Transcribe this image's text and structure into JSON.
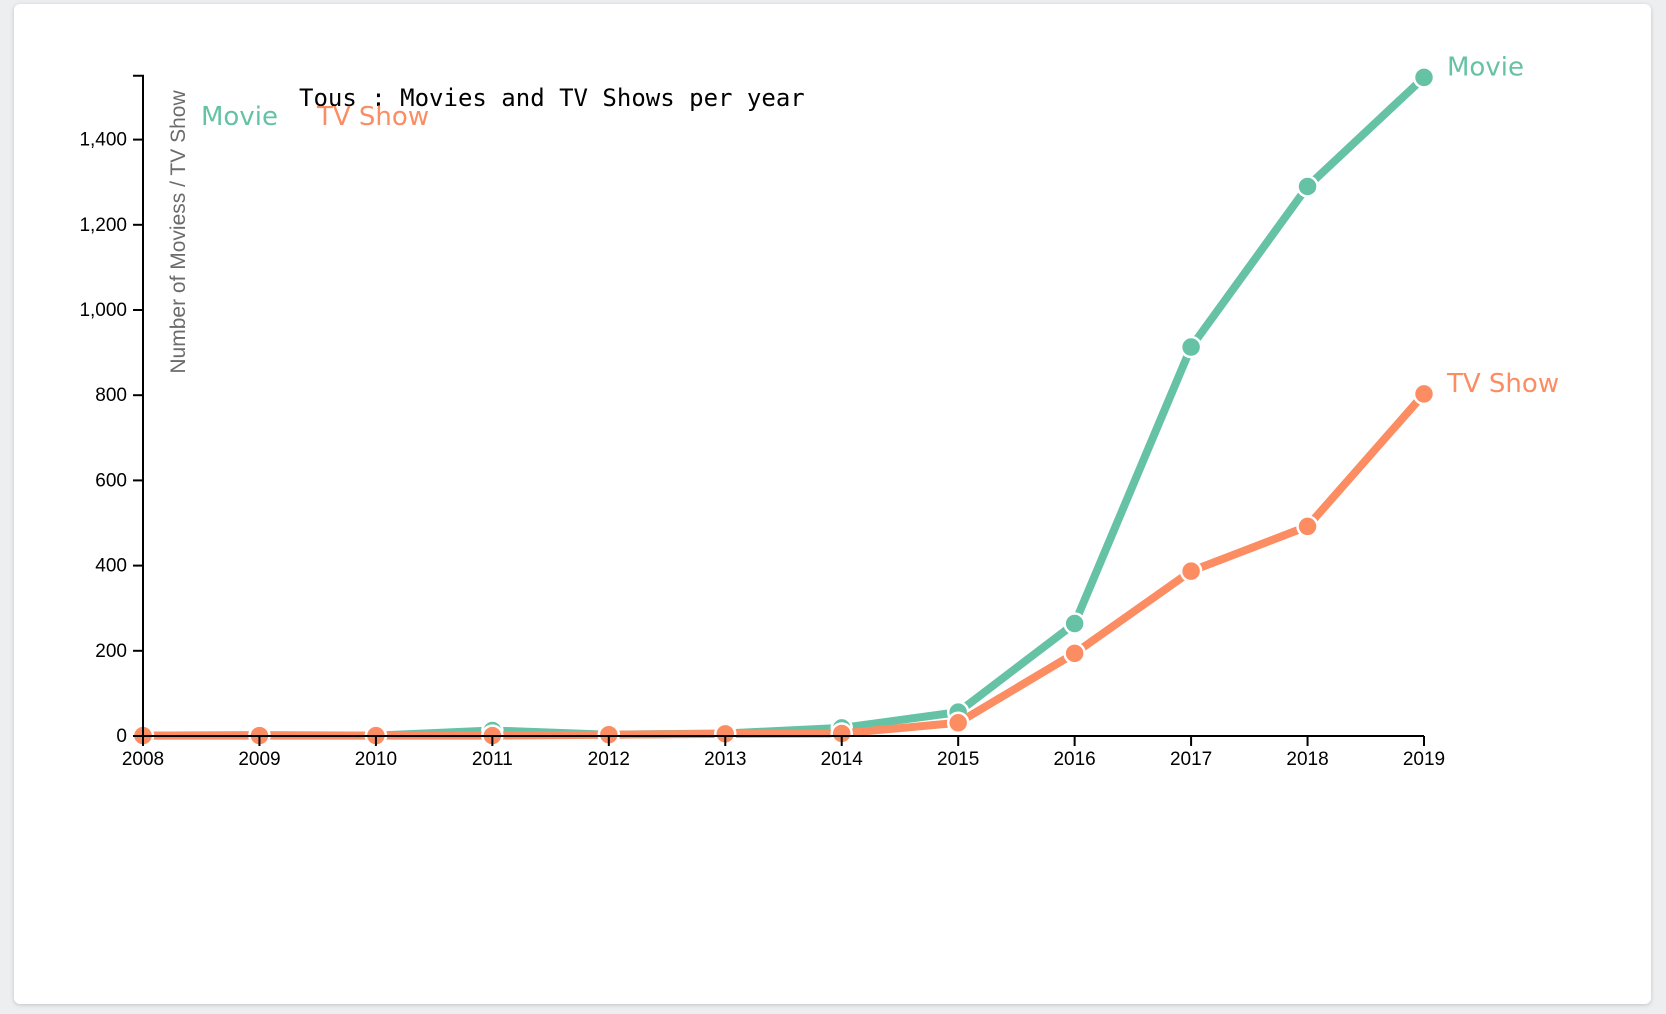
{
  "chart_data": {
    "type": "line",
    "title": "Tous : Movies and TV Shows per year",
    "xlabel": "",
    "ylabel": "Number of Moviess / TV Show",
    "categories": [
      "2008",
      "2009",
      "2010",
      "2011",
      "2012",
      "2013",
      "2014",
      "2015",
      "2016",
      "2017",
      "2018",
      "2019"
    ],
    "ylim": [
      0,
      1550
    ],
    "yticks": [
      0,
      200,
      400,
      600,
      800,
      1000,
      1200,
      1400
    ],
    "ytick_labels": [
      "0",
      "200",
      "400",
      "600",
      "800",
      "1,000",
      "1,200",
      "1,400"
    ],
    "series": [
      {
        "name": "Movie",
        "color": "#66c2a5",
        "values": [
          1,
          2,
          1,
          13,
          3,
          6,
          19,
          56,
          264,
          913,
          1290,
          1546
        ]
      },
      {
        "name": "TV Show",
        "color": "#fc8d62",
        "values": [
          1,
          1,
          1,
          1,
          3,
          5,
          6,
          31,
          194,
          387,
          492,
          803
        ]
      }
    ],
    "legend": [
      "Movie",
      "TV Show"
    ],
    "legend_position": "top-left",
    "grid": false
  }
}
